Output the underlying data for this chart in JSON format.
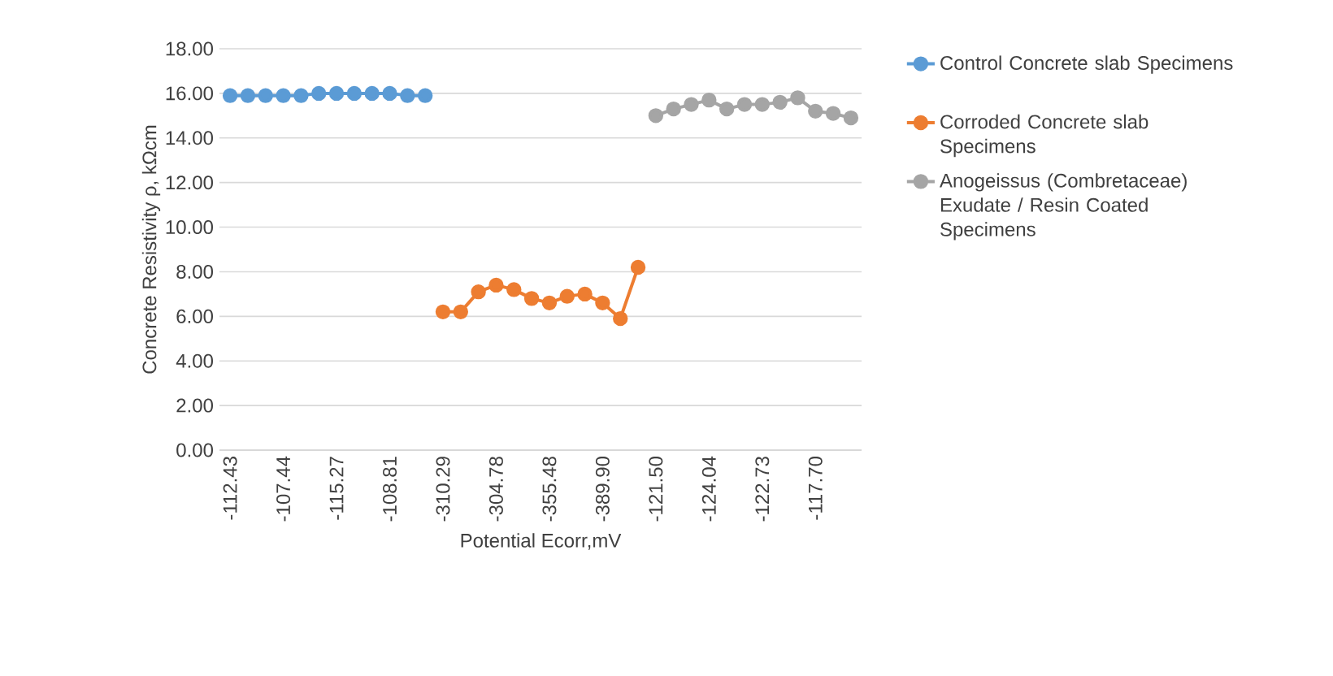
{
  "chart_data": {
    "type": "line",
    "ylabel": "Concrete Resistivity ρ, kΩcm",
    "xlabel": "Potential  Ecorr,mV",
    "categories": [
      "-112.43",
      null,
      null,
      "-107.44",
      null,
      null,
      "-115.27",
      null,
      null,
      "-108.81",
      null,
      null,
      "-310.29",
      null,
      null,
      "-304.78",
      null,
      null,
      "-355.48",
      null,
      null,
      "-389.90",
      null,
      null,
      "-121.50",
      null,
      null,
      "-124.04",
      null,
      null,
      "-122.73",
      null,
      null,
      "-117.70",
      null,
      null
    ],
    "series": [
      {
        "name": "Control  Concrete slab Specimens",
        "color": "#5b9bd5",
        "values": [
          15.9,
          15.9,
          15.9,
          15.9,
          15.9,
          16.0,
          16.0,
          16.0,
          16.0,
          16.0,
          15.9,
          15.9,
          null,
          null,
          null,
          null,
          null,
          null,
          null,
          null,
          null,
          null,
          null,
          null,
          null,
          null,
          null,
          null,
          null,
          null,
          null,
          null,
          null,
          null,
          null,
          null
        ]
      },
      {
        "name": "Corroded Concrete slab Specimens",
        "color": "#ed7d31",
        "values": [
          null,
          null,
          null,
          null,
          null,
          null,
          null,
          null,
          null,
          null,
          null,
          null,
          6.2,
          6.2,
          7.1,
          7.4,
          7.2,
          6.8,
          6.6,
          6.9,
          7.0,
          6.6,
          5.9,
          8.2,
          null,
          null,
          null,
          null,
          null,
          null,
          null,
          null,
          null,
          null,
          null,
          null
        ]
      },
      {
        "name": "Anogeissus (Combretaceae) Exudate / Resin Coated Specimens",
        "color": "#a5a5a5",
        "values": [
          null,
          null,
          null,
          null,
          null,
          null,
          null,
          null,
          null,
          null,
          null,
          null,
          null,
          null,
          null,
          null,
          null,
          null,
          null,
          null,
          null,
          null,
          null,
          null,
          15.0,
          15.3,
          15.5,
          15.7,
          15.3,
          15.5,
          15.5,
          15.6,
          15.8,
          15.2,
          15.1,
          14.9
        ]
      }
    ],
    "ylim": [
      0,
      18
    ],
    "yticks": [
      {
        "value": 0,
        "label": "0.00"
      },
      {
        "value": 2,
        "label": "2.00"
      },
      {
        "value": 4,
        "label": "4.00"
      },
      {
        "value": 6,
        "label": "6.00"
      },
      {
        "value": 8,
        "label": "8.00"
      },
      {
        "value": 10,
        "label": "10.00"
      },
      {
        "value": 12,
        "label": "12.00"
      },
      {
        "value": 14,
        "label": "14.00"
      },
      {
        "value": 16,
        "label": "16.00"
      },
      {
        "value": 18,
        "label": "18.00"
      }
    ],
    "grid": "y",
    "legend": "right",
    "marker": "circle",
    "line_style": "solid"
  }
}
